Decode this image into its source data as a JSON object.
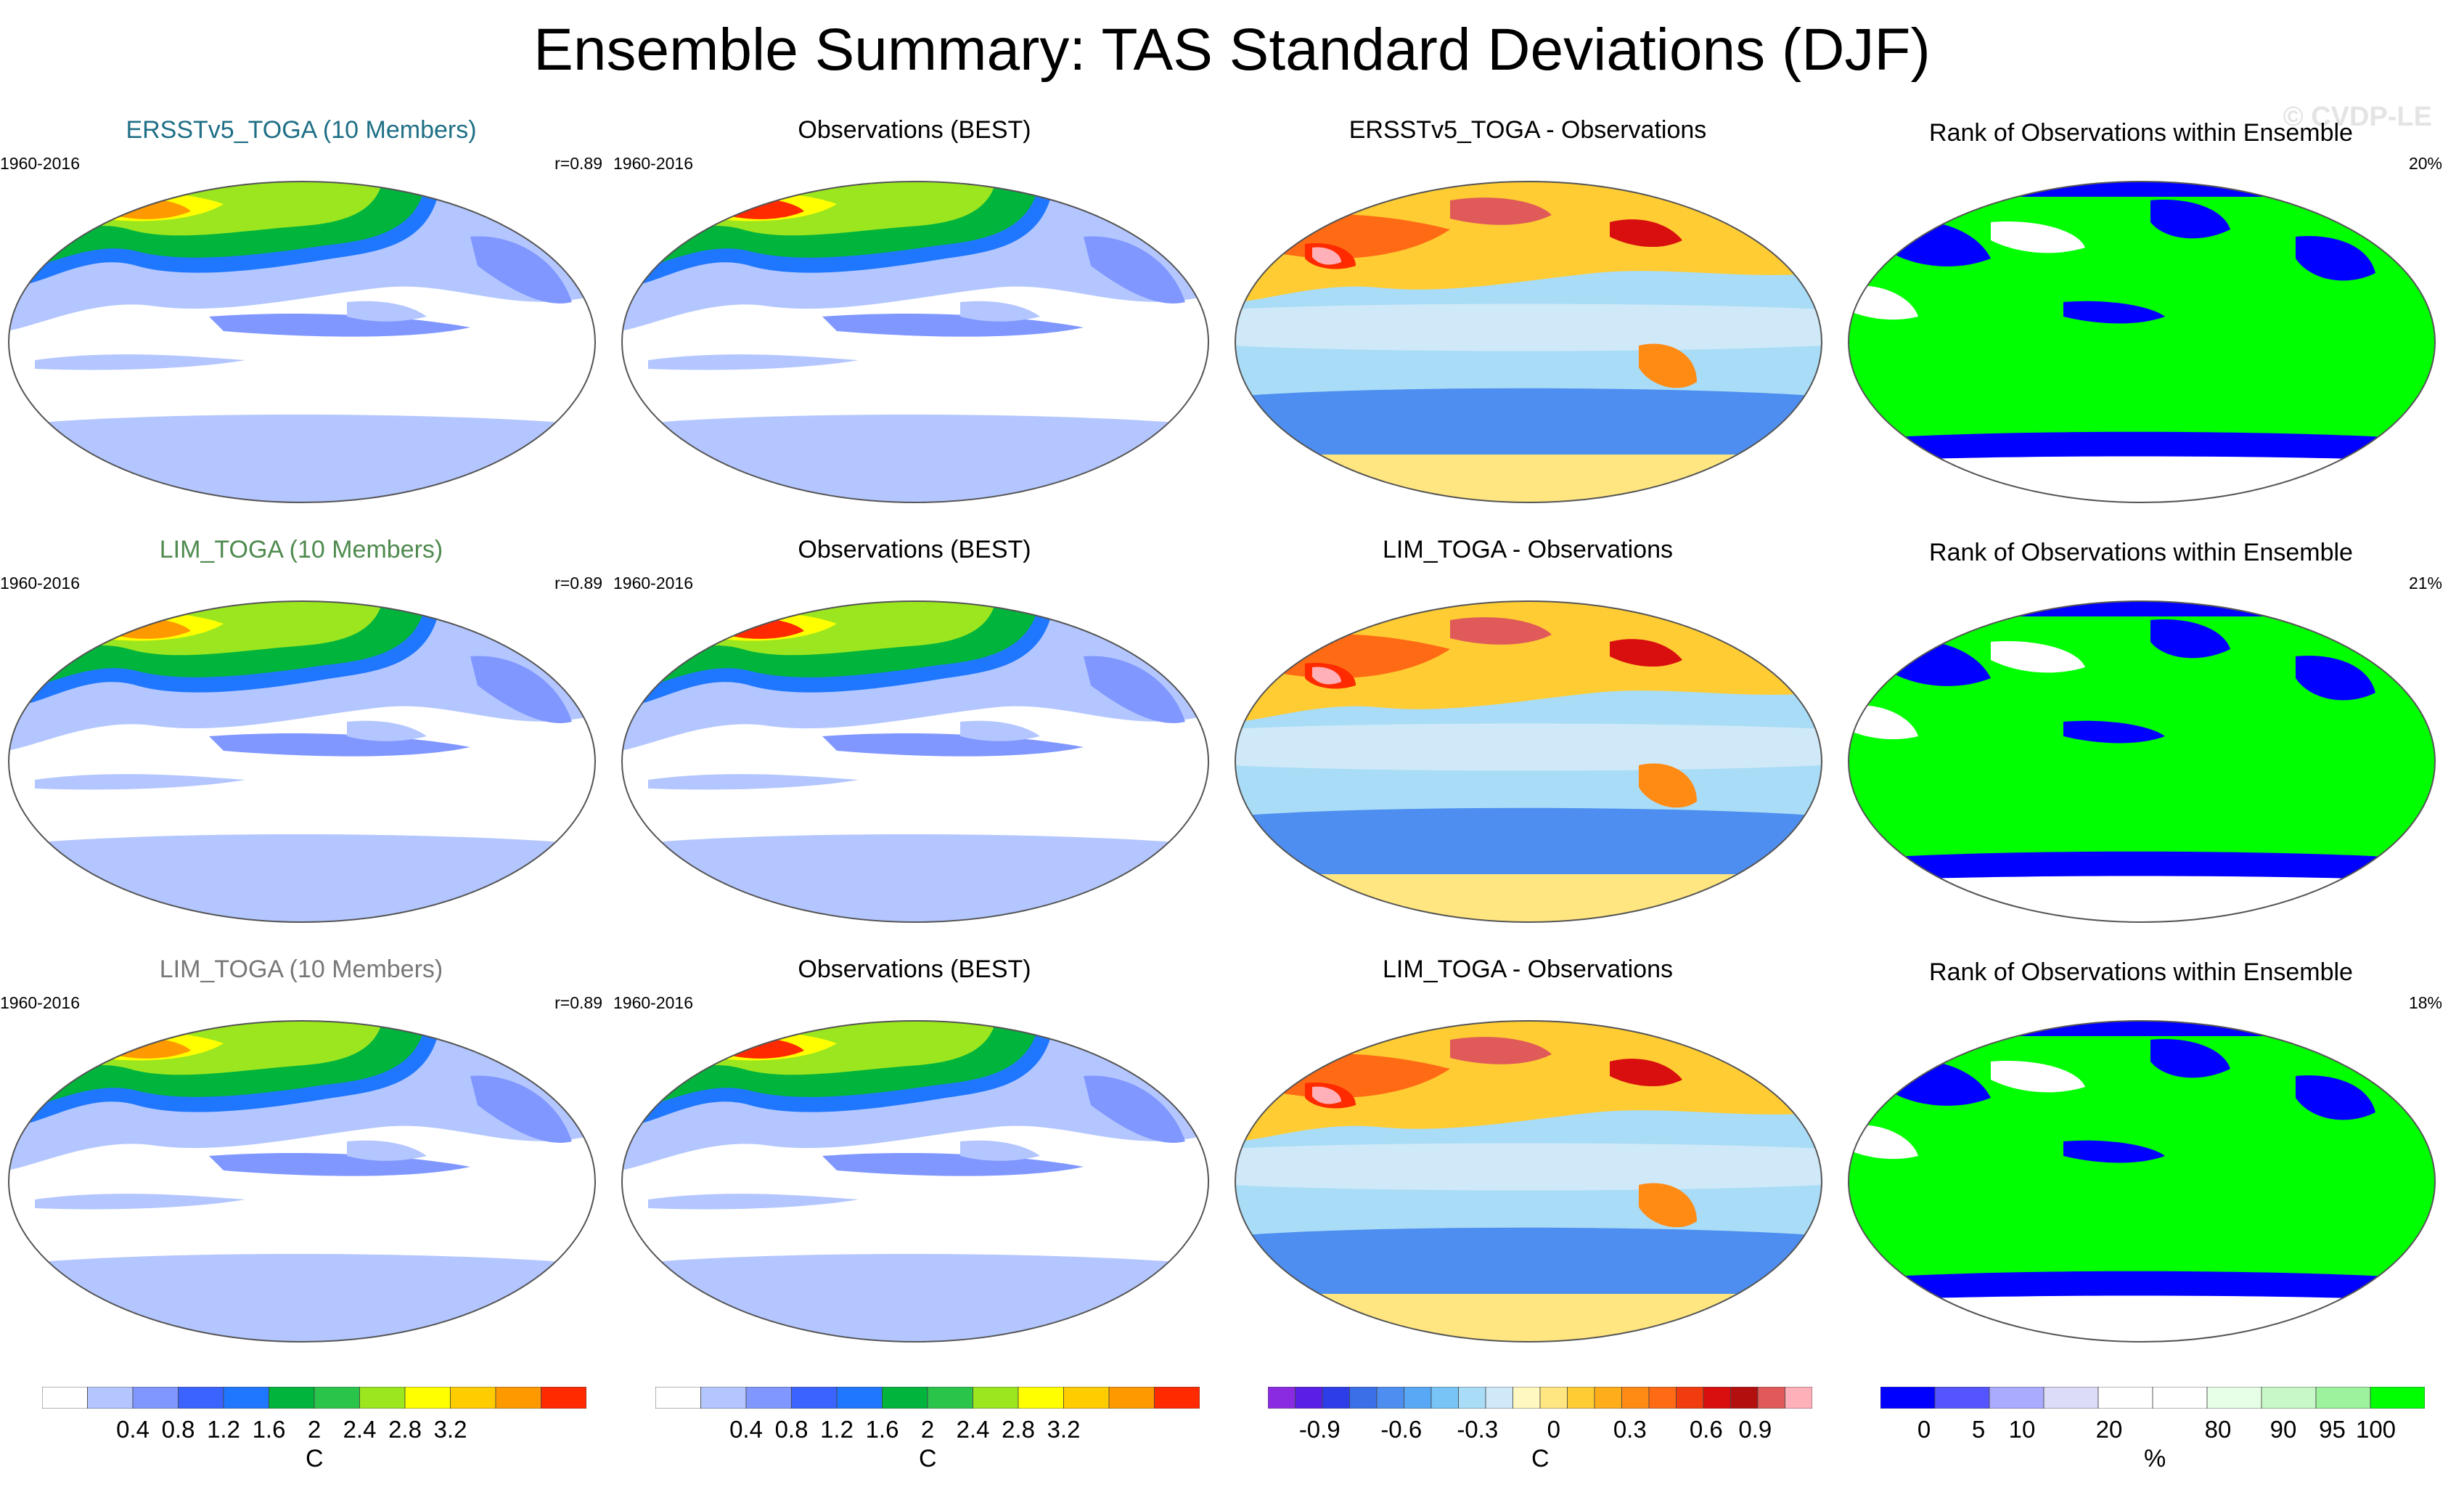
{
  "title": "Ensemble Summary: TAS Standard Deviations (DJF)",
  "watermark": "© CVDP-LE",
  "rows": [
    {
      "ens": {
        "title": "ERSSTv5_TOGA (10 Members)",
        "color": "#1f6f86",
        "period": "1960-2016",
        "r": "r=0.89"
      },
      "obs": {
        "title": "Observations (BEST)",
        "period": "1960-2016"
      },
      "diff": {
        "title": "ERSSTv5_TOGA - Observations"
      },
      "rank": {
        "title": "Rank of Observations within Ensemble",
        "pct": "20%"
      }
    },
    {
      "ens": {
        "title": "LIM_TOGA (10 Members)",
        "color": "#4f8a4f",
        "period": "1960-2016",
        "r": "r=0.89"
      },
      "obs": {
        "title": "Observations (BEST)",
        "period": "1960-2016"
      },
      "diff": {
        "title": "LIM_TOGA - Observations"
      },
      "rank": {
        "title": "Rank of Observations within Ensemble",
        "pct": "21%"
      }
    },
    {
      "ens": {
        "title": "LIM_TOGA (10 Members)",
        "color": "#777777",
        "period": "1960-2016",
        "r": "r=0.89"
      },
      "obs": {
        "title": "Observations (BEST)",
        "period": "1960-2016"
      },
      "diff": {
        "title": "LIM_TOGA - Observations"
      },
      "rank": {
        "title": "Rank of Observations within Ensemble",
        "pct": "18%"
      }
    }
  ],
  "colorbars": {
    "sd": {
      "colors": [
        "#ffffff",
        "#b3c6ff",
        "#8097ff",
        "#3b63ff",
        "#1f77ff",
        "#00b43c",
        "#2bc44b",
        "#9be61f",
        "#ffff00",
        "#ffcc00",
        "#ff9900",
        "#ff2a00"
      ],
      "ticks": [
        "0.4",
        "0.8",
        "1.2",
        "1.6",
        "2",
        "2.4",
        "2.8",
        "3.2"
      ],
      "unit": "C"
    },
    "diff": {
      "colors": [
        "#8a2be2",
        "#5a1fe6",
        "#2d3ee8",
        "#3a6fe8",
        "#4d8ef0",
        "#58a8f6",
        "#78c4f6",
        "#a9dcf6",
        "#cfe9f8",
        "#fff8c0",
        "#ffe680",
        "#ffcc33",
        "#ffad1a",
        "#ff8a14",
        "#ff6a14",
        "#f03c0e",
        "#d90f0f",
        "#b30f0f",
        "#e05a5a",
        "#ffb0b8"
      ],
      "ticks": [
        "-0.9",
        "-0.6",
        "-0.3",
        "0",
        "0.3",
        "0.6",
        "0.9"
      ],
      "unit": "C"
    },
    "rank": {
      "colors": [
        "#0000ff",
        "#5555ff",
        "#aaaaff",
        "#dcdcf8",
        "#ffffff",
        "#ffffff",
        "#e6ffe6",
        "#c8f8c8",
        "#9df29d",
        "#00ff00"
      ],
      "ticks": [
        "0",
        "5",
        "10",
        "20",
        "80",
        "90",
        "95",
        "100"
      ],
      "unit": "%"
    }
  }
}
